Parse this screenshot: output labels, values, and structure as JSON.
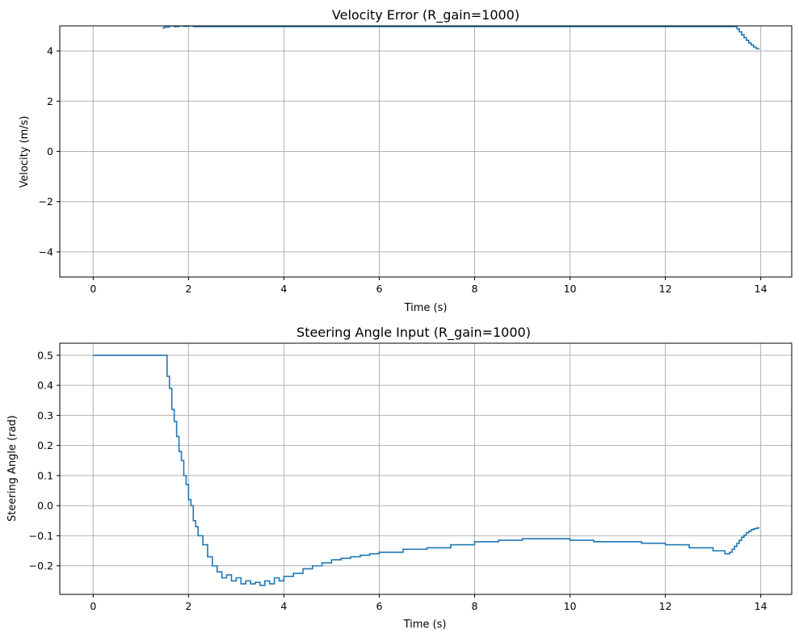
{
  "chart_data": [
    {
      "type": "line",
      "style": "step",
      "title": "Velocity Error (R_gain=1000)",
      "xlabel": "Time (s)",
      "ylabel": "Velocity (m/s)",
      "xlim": [
        -0.7,
        14.65
      ],
      "ylim": [
        -5,
        5
      ],
      "xticks": [
        0,
        2,
        4,
        6,
        8,
        10,
        12,
        14
      ],
      "xtick_labels": [
        "0",
        "2",
        "4",
        "6",
        "8",
        "10",
        "12",
        "14"
      ],
      "yticks": [
        -4,
        -2,
        0,
        2,
        4
      ],
      "ytick_labels": [
        "−4",
        "−2",
        "0",
        "2",
        "4"
      ],
      "grid": true,
      "line_color": "#1f77b4",
      "grid_color": "#b0b0b0",
      "series": [
        {
          "x": [
            1.45,
            1.5,
            1.6,
            1.7,
            1.8,
            1.9,
            2.0,
            2.1,
            13.45,
            13.5,
            13.55,
            13.6,
            13.65,
            13.7,
            13.75,
            13.8,
            13.85,
            13.9,
            13.95
          ],
          "y": [
            4.92,
            4.95,
            5.0,
            4.97,
            5.0,
            4.98,
            5.0,
            4.97,
            4.98,
            4.88,
            4.76,
            4.64,
            4.53,
            4.42,
            4.32,
            4.24,
            4.16,
            4.1,
            4.08
          ]
        }
      ]
    },
    {
      "type": "line",
      "style": "step",
      "title": "Steering Angle Input (R_gain=1000)",
      "xlabel": "Time (s)",
      "ylabel": "Steering Angle (rad)",
      "xlim": [
        -0.7,
        14.65
      ],
      "ylim": [
        -0.295,
        0.54
      ],
      "xticks": [
        0,
        2,
        4,
        6,
        8,
        10,
        12,
        14
      ],
      "xtick_labels": [
        "0",
        "2",
        "4",
        "6",
        "8",
        "10",
        "12",
        "14"
      ],
      "yticks": [
        -0.2,
        -0.1,
        0.0,
        0.1,
        0.2,
        0.3,
        0.4,
        0.5
      ],
      "ytick_labels": [
        "−0.2",
        "−0.1",
        "0.0",
        "0.1",
        "0.2",
        "0.3",
        "0.4",
        "0.5"
      ],
      "grid": true,
      "line_color": "#1f77b4",
      "grid_color": "#b0b0b0",
      "series": [
        {
          "x": [
            0.0,
            1.5,
            1.55,
            1.6,
            1.65,
            1.7,
            1.75,
            1.8,
            1.85,
            1.9,
            1.95,
            2.0,
            2.05,
            2.1,
            2.15,
            2.2,
            2.3,
            2.4,
            2.5,
            2.6,
            2.7,
            2.8,
            2.9,
            3.0,
            3.1,
            3.2,
            3.3,
            3.4,
            3.5,
            3.6,
            3.7,
            3.8,
            3.9,
            4.0,
            4.2,
            4.4,
            4.6,
            4.8,
            5.0,
            5.2,
            5.4,
            5.6,
            5.8,
            6.0,
            6.5,
            7.0,
            7.5,
            8.0,
            8.5,
            9.0,
            9.5,
            10.0,
            10.5,
            11.0,
            11.5,
            12.0,
            12.5,
            13.0,
            13.25,
            13.3,
            13.35,
            13.4,
            13.45,
            13.5,
            13.55,
            13.6,
            13.65,
            13.7,
            13.75,
            13.8,
            13.85,
            13.9,
            13.95
          ],
          "y": [
            0.5,
            0.5,
            0.43,
            0.39,
            0.32,
            0.28,
            0.23,
            0.18,
            0.15,
            0.1,
            0.07,
            0.02,
            0.0,
            -0.05,
            -0.07,
            -0.1,
            -0.13,
            -0.17,
            -0.2,
            -0.22,
            -0.24,
            -0.23,
            -0.25,
            -0.24,
            -0.26,
            -0.25,
            -0.26,
            -0.255,
            -0.265,
            -0.25,
            -0.26,
            -0.24,
            -0.25,
            -0.235,
            -0.225,
            -0.21,
            -0.2,
            -0.19,
            -0.18,
            -0.175,
            -0.17,
            -0.165,
            -0.16,
            -0.155,
            -0.145,
            -0.14,
            -0.13,
            -0.12,
            -0.115,
            -0.11,
            -0.11,
            -0.115,
            -0.12,
            -0.12,
            -0.125,
            -0.13,
            -0.14,
            -0.15,
            -0.16,
            -0.16,
            -0.155,
            -0.145,
            -0.135,
            -0.125,
            -0.115,
            -0.105,
            -0.098,
            -0.09,
            -0.085,
            -0.08,
            -0.077,
            -0.075,
            -0.073
          ]
        }
      ]
    }
  ]
}
